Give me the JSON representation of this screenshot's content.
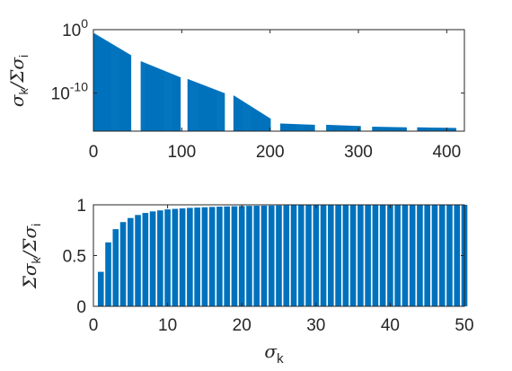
{
  "chart_data": [
    {
      "type": "bar",
      "yscale": "log",
      "color": "#0072BD",
      "xlim": [
        0,
        420
      ],
      "ylim": [
        1e-16,
        1
      ],
      "xticks": [
        0,
        100,
        200,
        300,
        400
      ],
      "xtick_labels": [
        "0",
        "100",
        "200",
        "300",
        "400"
      ],
      "ytick_labels": [
        {
          "base": "10",
          "exp": "0",
          "value": 1
        },
        {
          "base": "10",
          "exp": "-10",
          "value": 1e-10
        }
      ],
      "ylabel": {
        "numerator": "σ",
        "numerator_sub": "k",
        "slash": "/",
        "denominator": "Σσ",
        "denominator_sub": "i"
      },
      "series": [
        {
          "segments": [
            {
              "x_start": 1,
              "x_end": 42,
              "log10_start": -0.6,
              "log10_end": -4.0
            },
            {
              "x_start": 54,
              "x_end": 98,
              "log10_start": -5.0,
              "log10_end": -7.5
            },
            {
              "x_start": 107,
              "x_end": 148,
              "log10_start": -7.8,
              "log10_end": -10.0
            },
            {
              "x_start": 159,
              "x_end": 200,
              "log10_start": -10.4,
              "log10_end": -14.0
            },
            {
              "x_start": 212,
              "x_end": 250,
              "log10_start": -14.8,
              "log10_end": -15.0
            },
            {
              "x_start": 264,
              "x_end": 302,
              "log10_start": -15.0,
              "log10_end": -15.2
            },
            {
              "x_start": 316,
              "x_end": 354,
              "log10_start": -15.3,
              "log10_end": -15.4
            },
            {
              "x_start": 367,
              "x_end": 410,
              "log10_start": -15.4,
              "log10_end": -15.5
            }
          ]
        }
      ]
    },
    {
      "type": "bar",
      "color": "#0072BD",
      "xlim": [
        0,
        50
      ],
      "ylim": [
        0,
        1
      ],
      "xticks": [
        0,
        10,
        20,
        30,
        40,
        50
      ],
      "xtick_labels": [
        "0",
        "10",
        "20",
        "30",
        "40",
        "50"
      ],
      "yticks": [
        0,
        0.5,
        1
      ],
      "ytick_labels": [
        "0",
        "0.5",
        "1"
      ],
      "xlabel": {
        "main": "σ",
        "sub": "k"
      },
      "ylabel": {
        "numerator": "Σσ",
        "numerator_sub": "k",
        "slash": "/",
        "denominator": "Σσ",
        "denominator_sub": "i"
      },
      "x": [
        1,
        2,
        3,
        4,
        5,
        6,
        7,
        8,
        9,
        10,
        11,
        12,
        13,
        14,
        15,
        16,
        17,
        18,
        19,
        20,
        21,
        22,
        23,
        24,
        25,
        26,
        27,
        28,
        29,
        30,
        31,
        32,
        33,
        34,
        35,
        36,
        37,
        38,
        39,
        40,
        41,
        42,
        43,
        44,
        45,
        46,
        47,
        48,
        49,
        50
      ],
      "values": [
        0.34,
        0.63,
        0.76,
        0.83,
        0.87,
        0.9,
        0.92,
        0.935,
        0.945,
        0.955,
        0.96,
        0.965,
        0.97,
        0.973,
        0.976,
        0.979,
        0.982,
        0.984,
        0.986,
        0.988,
        0.99,
        0.991,
        0.992,
        0.993,
        0.994,
        0.995,
        0.996,
        0.997,
        0.997,
        0.998,
        0.998,
        0.999,
        0.999,
        0.999,
        1,
        1,
        1,
        1,
        1,
        1,
        1,
        1,
        1,
        1,
        1,
        1,
        1,
        1,
        1,
        1
      ]
    }
  ]
}
